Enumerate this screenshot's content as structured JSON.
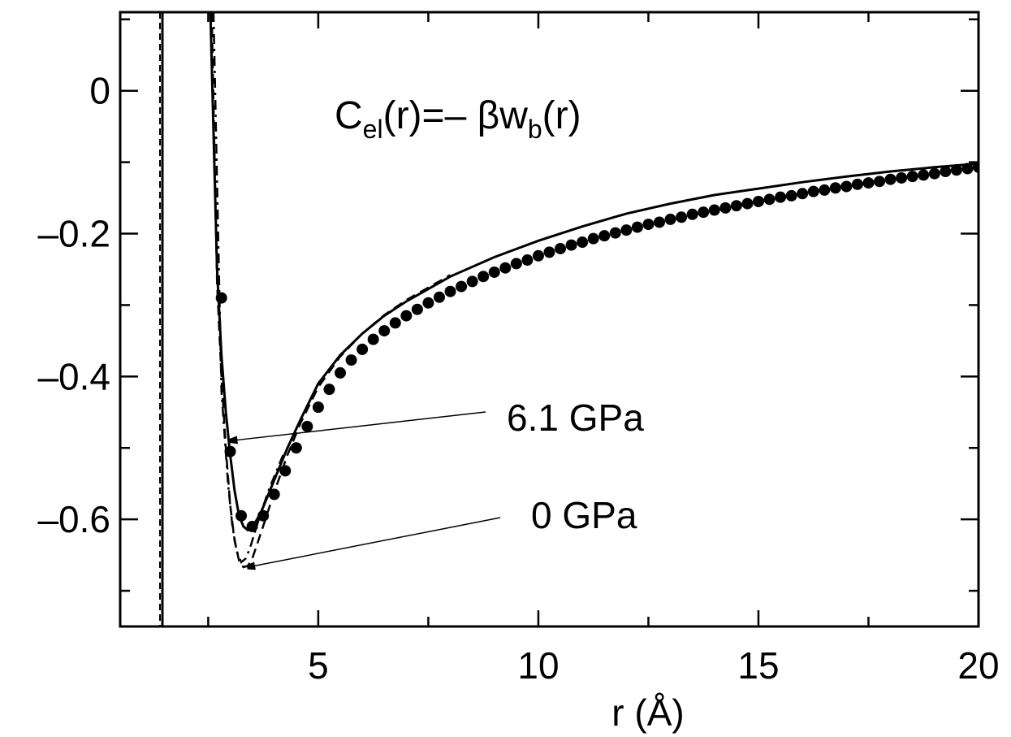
{
  "chart_data": {
    "type": "line",
    "title": "",
    "xlabel": "r (Å)",
    "ylabel": "",
    "xlim": [
      0.5,
      20
    ],
    "ylim": [
      -0.75,
      0.11
    ],
    "x_ticks": [
      5,
      10,
      15,
      20
    ],
    "x_tick_labels": [
      "5",
      "10",
      "15",
      "20"
    ],
    "y_ticks": [
      0,
      -0.2,
      -0.4,
      -0.6
    ],
    "y_tick_labels": [
      "0",
      "–0.2",
      "–0.4",
      "–0.6"
    ],
    "annotation_formula": {
      "c": "C",
      "sub1": "el",
      "mid": "(r)=– βw",
      "sub2": "b",
      "end": "(r)"
    },
    "arrow_annotations": [
      {
        "label": "6.1 GPa",
        "target": [
          3.0,
          -0.49
        ]
      },
      {
        "label": "0 GPa",
        "target": [
          3.4,
          -0.667
        ]
      }
    ],
    "series": [
      {
        "style": "solid",
        "x": [
          2.55,
          2.7,
          2.8,
          2.9,
          3.0,
          3.1,
          3.2,
          3.3,
          3.4,
          3.5,
          3.7,
          4.0,
          4.3,
          4.6,
          5.0,
          5.5,
          6.0,
          6.5,
          7.0,
          8.0,
          9.0,
          10.0,
          11.0,
          12.0,
          13.0,
          14.0,
          15.0,
          16.0,
          17.0,
          18.0,
          19.0,
          20.0
        ],
        "y": [
          0.11,
          -0.25,
          -0.37,
          -0.45,
          -0.51,
          -0.56,
          -0.595,
          -0.61,
          -0.615,
          -0.612,
          -0.59,
          -0.545,
          -0.5,
          -0.46,
          -0.41,
          -0.37,
          -0.34,
          -0.315,
          -0.295,
          -0.26,
          -0.233,
          -0.21,
          -0.19,
          -0.172,
          -0.158,
          -0.146,
          -0.137,
          -0.128,
          -0.12,
          -0.113,
          -0.107,
          -0.102
        ]
      },
      {
        "style": "dashed",
        "x": [
          2.58,
          2.7,
          2.8,
          2.9,
          3.0,
          3.1,
          3.2,
          3.3,
          3.4,
          3.5,
          3.6,
          3.8,
          4.0,
          4.3,
          4.6,
          5.0,
          5.5,
          6.0,
          6.5,
          7.0,
          8.0
        ],
        "y": [
          0.11,
          -0.27,
          -0.4,
          -0.5,
          -0.58,
          -0.63,
          -0.658,
          -0.667,
          -0.665,
          -0.655,
          -0.637,
          -0.6,
          -0.562,
          -0.51,
          -0.465,
          -0.415,
          -0.372,
          -0.34,
          -0.314,
          -0.293,
          -0.258
        ]
      },
      {
        "style": "dash-dot",
        "x": [
          2.62,
          2.8,
          2.95,
          3.05,
          3.15,
          3.25,
          3.35,
          3.45,
          3.55,
          3.7,
          3.9,
          4.2
        ],
        "y": [
          0.11,
          -0.42,
          -0.55,
          -0.61,
          -0.645,
          -0.66,
          -0.655,
          -0.64,
          -0.62,
          -0.59,
          -0.555,
          -0.51
        ]
      },
      {
        "style": "markers",
        "x": [
          2.8,
          3.0,
          3.25,
          3.5,
          3.75,
          4.0,
          4.25,
          4.5,
          4.75,
          5.0,
          5.25,
          5.5,
          5.75,
          6.0,
          6.25,
          6.5,
          6.75,
          7.0,
          7.25,
          7.5,
          7.75,
          8.0,
          8.25,
          8.5,
          8.75,
          9.0,
          9.25,
          9.5,
          9.75,
          10.0,
          10.25,
          10.5,
          10.75,
          11.0,
          11.25,
          11.5,
          11.75,
          12.0,
          12.25,
          12.5,
          12.75,
          13.0,
          13.25,
          13.5,
          13.75,
          14.0,
          14.25,
          14.5,
          14.75,
          15.0,
          15.25,
          15.5,
          15.75,
          16.0,
          16.25,
          16.5,
          16.75,
          17.0,
          17.25,
          17.5,
          17.75,
          18.0,
          18.25,
          18.5,
          18.75,
          19.0,
          19.25,
          19.5,
          19.75,
          20.0
        ],
        "y": [
          -0.29,
          -0.505,
          -0.595,
          -0.61,
          -0.595,
          -0.565,
          -0.532,
          -0.5,
          -0.47,
          -0.443,
          -0.418,
          -0.395,
          -0.377,
          -0.362,
          -0.348,
          -0.336,
          -0.325,
          -0.315,
          -0.306,
          -0.297,
          -0.289,
          -0.281,
          -0.274,
          -0.267,
          -0.26,
          -0.254,
          -0.248,
          -0.242,
          -0.237,
          -0.231,
          -0.226,
          -0.221,
          -0.216,
          -0.212,
          -0.207,
          -0.203,
          -0.199,
          -0.195,
          -0.191,
          -0.187,
          -0.184,
          -0.18,
          -0.177,
          -0.173,
          -0.17,
          -0.167,
          -0.164,
          -0.161,
          -0.158,
          -0.155,
          -0.152,
          -0.149,
          -0.147,
          -0.144,
          -0.141,
          -0.139,
          -0.136,
          -0.134,
          -0.131,
          -0.129,
          -0.127,
          -0.124,
          -0.122,
          -0.12,
          -0.118,
          -0.116,
          -0.113,
          -0.111,
          -0.109,
          -0.107
        ]
      }
    ]
  }
}
